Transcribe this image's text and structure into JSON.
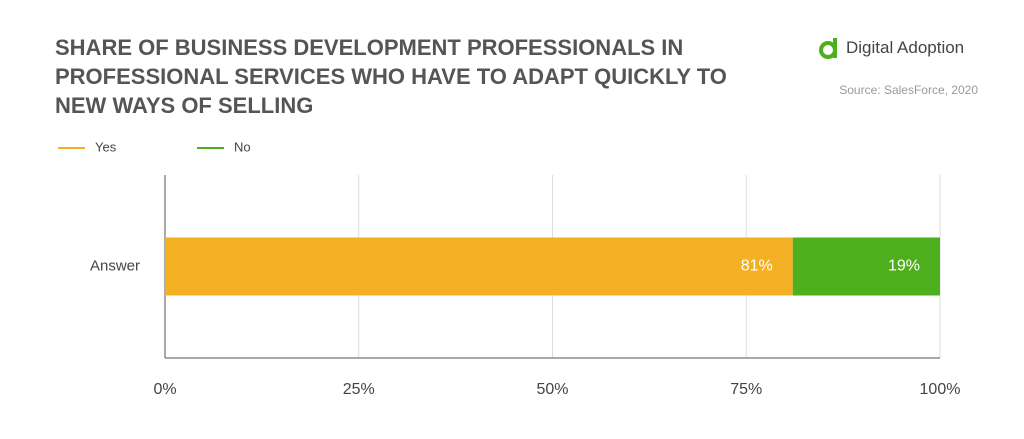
{
  "chart_data": {
    "type": "stacked-barh",
    "title": "SHARE OF BUSINESS DEVELOPMENT PROFESSIONALS IN PROFESSIONAL SERVICES WHO HAVE TO ADAPT QUICKLY TO NEW WAYS OF SELLING",
    "brand": "Digital Adoption",
    "source": "Source: SalesForce, 2020",
    "categories": [
      "Answer"
    ],
    "series": [
      {
        "name": "Yes",
        "color": "#f3b023",
        "values": [
          81
        ],
        "value_labels": [
          "81%"
        ]
      },
      {
        "name": "No",
        "color": "#4daf1c",
        "values": [
          19
        ],
        "value_labels": [
          "19%"
        ]
      }
    ],
    "xlim": [
      0,
      100
    ],
    "xticks": [
      {
        "value": 0,
        "label": "0%"
      },
      {
        "value": 25,
        "label": "25%"
      },
      {
        "value": 50,
        "label": "50%"
      },
      {
        "value": 75,
        "label": "75%"
      },
      {
        "value": 100,
        "label": "100%"
      }
    ],
    "grid": true
  }
}
